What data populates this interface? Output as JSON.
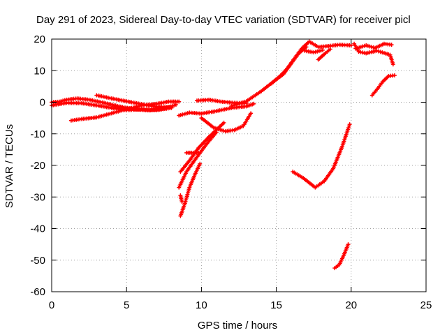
{
  "chart_data": {
    "type": "scatter",
    "title": "Day 291 of 2023, Sidereal Day-to-day VTEC variation (SDTVAR) for receiver picl",
    "xlabel": "GPS time / hours",
    "ylabel": "SDTVAR / TECUs",
    "xlim": [
      0,
      25
    ],
    "ylim": [
      -60,
      20
    ],
    "xticks": [
      0,
      5,
      10,
      15,
      20,
      25
    ],
    "yticks": [
      -60,
      -50,
      -40,
      -30,
      -20,
      -10,
      0,
      10,
      20
    ],
    "xtick_labels": [
      "0",
      "5",
      "10",
      "15",
      "20",
      "25"
    ],
    "ytick_labels": [
      "-60",
      "-50",
      "-40",
      "-30",
      "-20",
      "-10",
      "0",
      "10",
      "20"
    ],
    "grid": true,
    "marker_color": "#ff0000",
    "series": [
      {
        "name": "s1",
        "points": [
          [
            0,
            0
          ],
          [
            0.5,
            0.2
          ],
          [
            1,
            0.8
          ],
          [
            1.7,
            1.2
          ],
          [
            2.5,
            0.8
          ],
          [
            3.5,
            -0.2
          ],
          [
            4.5,
            -1.3
          ],
          [
            5.5,
            -2.2
          ],
          [
            6.5,
            -2.6
          ],
          [
            7.5,
            -2.0
          ],
          [
            8.3,
            -0.8
          ]
        ]
      },
      {
        "name": "s2",
        "points": [
          [
            1.3,
            -5.8
          ],
          [
            2,
            -5.3
          ],
          [
            3,
            -4.8
          ],
          [
            4,
            -3.5
          ],
          [
            5,
            -2.2
          ],
          [
            6,
            -1.0
          ],
          [
            7,
            -0.5
          ],
          [
            7.8,
            0.2
          ],
          [
            8.5,
            0.2
          ]
        ]
      },
      {
        "name": "s3",
        "points": [
          [
            3,
            2.2
          ],
          [
            4,
            1.2
          ],
          [
            5,
            0.3
          ],
          [
            6,
            -0.6
          ],
          [
            7,
            -1.4
          ],
          [
            8,
            -1.6
          ]
        ]
      },
      {
        "name": "s4",
        "points": [
          [
            0,
            -1
          ],
          [
            1,
            -0.2
          ],
          [
            2,
            -0.3
          ],
          [
            3,
            -1.0
          ],
          [
            4,
            -1.8
          ],
          [
            5,
            -2.5
          ],
          [
            6,
            -2.2
          ],
          [
            7,
            -2.5
          ],
          [
            8,
            -1.8
          ]
        ]
      },
      {
        "name": "s5",
        "points": [
          [
            8.5,
            -4.2
          ],
          [
            9.2,
            -3.3
          ],
          [
            10,
            -3.6
          ],
          [
            11,
            -2.8
          ],
          [
            12,
            -1.8
          ],
          [
            13,
            -1.3
          ],
          [
            13.5,
            -0.5
          ]
        ]
      },
      {
        "name": "s6",
        "points": [
          [
            9.7,
            0.5
          ],
          [
            10.5,
            0.8
          ],
          [
            11.3,
            0.2
          ],
          [
            12.2,
            -0.2
          ],
          [
            13,
            -0.3
          ]
        ]
      },
      {
        "name": "s7",
        "points": [
          [
            12,
            -1.2
          ],
          [
            13,
            0.3
          ],
          [
            14,
            3.5
          ],
          [
            14.8,
            6.5
          ],
          [
            15.5,
            9
          ],
          [
            16,
            12.5
          ],
          [
            16.7,
            17
          ],
          [
            17.2,
            19.2
          ],
          [
            17.8,
            17.5
          ],
          [
            18.5,
            17.8
          ],
          [
            19.2,
            18.2
          ],
          [
            20,
            18.0
          ]
        ]
      },
      {
        "name": "s8",
        "points": [
          [
            14.7,
            6.0
          ],
          [
            15.3,
            8.5
          ],
          [
            15.8,
            11
          ],
          [
            16.5,
            15.5
          ],
          [
            17.0,
            17.5
          ]
        ]
      },
      {
        "name": "s9",
        "points": [
          [
            16.9,
            16.3
          ],
          [
            17.5,
            15.8
          ],
          [
            18.1,
            16.5
          ]
        ]
      },
      {
        "name": "s10",
        "points": [
          [
            17.8,
            13.5
          ],
          [
            18.2,
            15.2
          ],
          [
            18.6,
            16.8
          ]
        ]
      },
      {
        "name": "s11",
        "points": [
          [
            20.2,
            18.5
          ],
          [
            20.5,
            16.0
          ],
          [
            21,
            15.5
          ],
          [
            21.7,
            16.3
          ],
          [
            22.2,
            15.6
          ],
          [
            22.6,
            15.0
          ],
          [
            22.8,
            12.0
          ]
        ]
      },
      {
        "name": "s12",
        "points": [
          [
            20.3,
            17.0
          ],
          [
            21,
            18.0
          ],
          [
            21.6,
            17.2
          ],
          [
            22.2,
            18.5
          ],
          [
            22.7,
            18.2
          ]
        ]
      },
      {
        "name": "s13",
        "points": [
          [
            21.4,
            2.2
          ],
          [
            21.8,
            4.5
          ],
          [
            22.1,
            6.5
          ],
          [
            22.5,
            8.3
          ],
          [
            22.9,
            8.5
          ]
        ]
      },
      {
        "name": "s14",
        "points": [
          [
            10,
            -5
          ],
          [
            10.8,
            -8
          ],
          [
            11.6,
            -9.2
          ],
          [
            12.2,
            -8.8
          ],
          [
            12.8,
            -7.5
          ],
          [
            13.3,
            -3.5
          ]
        ]
      },
      {
        "name": "s15",
        "points": [
          [
            8.6,
            -22
          ],
          [
            9.2,
            -18.5
          ],
          [
            9.8,
            -14.5
          ],
          [
            10.5,
            -11
          ],
          [
            11.5,
            -6.5
          ]
        ]
      },
      {
        "name": "s16",
        "points": [
          [
            8.5,
            -27
          ],
          [
            9,
            -22
          ],
          [
            9.6,
            -18
          ],
          [
            10.3,
            -13.5
          ],
          [
            11,
            -9.5
          ]
        ]
      },
      {
        "name": "s17",
        "points": [
          [
            8.7,
            -31.5
          ],
          [
            8.6,
            -29.5
          ]
        ]
      },
      {
        "name": "s18",
        "points": [
          [
            8.6,
            -36
          ],
          [
            8.9,
            -32
          ],
          [
            9.2,
            -27
          ],
          [
            9.6,
            -22.5
          ],
          [
            9.9,
            -19.5
          ]
        ]
      },
      {
        "name": "s19",
        "points": [
          [
            9,
            -16
          ],
          [
            9.8,
            -16
          ]
        ]
      },
      {
        "name": "s20",
        "points": [
          [
            16.1,
            -22
          ],
          [
            16.8,
            -24
          ],
          [
            17.6,
            -27
          ],
          [
            18.2,
            -25
          ],
          [
            18.8,
            -21
          ],
          [
            19.4,
            -14
          ],
          [
            19.9,
            -7
          ]
        ]
      },
      {
        "name": "s21",
        "points": [
          [
            18.9,
            -52.5
          ],
          [
            19.2,
            -51.5
          ],
          [
            19.5,
            -48.5
          ],
          [
            19.8,
            -45
          ]
        ]
      }
    ]
  }
}
